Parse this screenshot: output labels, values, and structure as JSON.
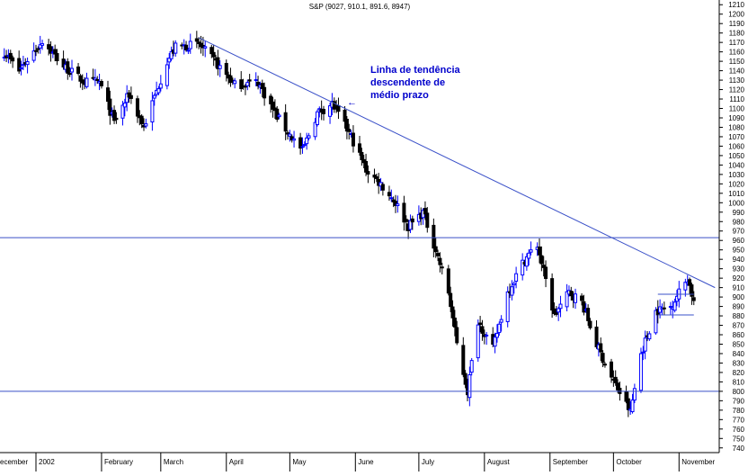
{
  "chart_data": {
    "type": "candlestick",
    "title": "S&P (9027, 910.1, 891.6, 8947)",
    "ylim": [
      735,
      1215
    ],
    "y_ticks": [
      740,
      750,
      760,
      770,
      780,
      790,
      800,
      810,
      820,
      830,
      840,
      850,
      860,
      870,
      880,
      890,
      900,
      910,
      920,
      930,
      940,
      950,
      960,
      970,
      980,
      990,
      1000,
      1010,
      1020,
      1030,
      1040,
      1050,
      1060,
      1070,
      1080,
      1090,
      1100,
      1110,
      1120,
      1130,
      1140,
      1150,
      1160,
      1170,
      1180,
      1190,
      1200,
      1210
    ],
    "x_range": [
      "2001-12-15",
      "2002-11-20"
    ],
    "month_labels": [
      {
        "label": "ecember",
        "date": "2001-12-15"
      },
      {
        "label": "2002",
        "date": "2002-01-01"
      },
      {
        "label": "February",
        "date": "2002-02-01"
      },
      {
        "label": "March",
        "date": "2002-03-01"
      },
      {
        "label": "April",
        "date": "2002-04-01"
      },
      {
        "label": "May",
        "date": "2002-05-01"
      },
      {
        "label": "June",
        "date": "2002-06-01"
      },
      {
        "label": "July",
        "date": "2002-07-01"
      },
      {
        "label": "August",
        "date": "2002-08-01"
      },
      {
        "label": "September",
        "date": "2002-09-01"
      },
      {
        "label": "October",
        "date": "2002-10-01"
      },
      {
        "label": "November",
        "date": "2002-11-01"
      }
    ],
    "anchors": [
      {
        "date": "2001-12-15",
        "value": 1165
      },
      {
        "date": "2001-12-24",
        "value": 1140
      },
      {
        "date": "2002-01-04",
        "value": 1172
      },
      {
        "date": "2002-01-14",
        "value": 1145
      },
      {
        "date": "2002-01-24",
        "value": 1128
      },
      {
        "date": "2002-01-31",
        "value": 1128
      },
      {
        "date": "2002-02-07",
        "value": 1085
      },
      {
        "date": "2002-02-14",
        "value": 1115
      },
      {
        "date": "2002-02-21",
        "value": 1080
      },
      {
        "date": "2002-03-04",
        "value": 1150
      },
      {
        "date": "2002-03-08",
        "value": 1165
      },
      {
        "date": "2002-03-19",
        "value": 1168
      },
      {
        "date": "2002-03-28",
        "value": 1146
      },
      {
        "date": "2002-04-05",
        "value": 1125
      },
      {
        "date": "2002-04-16",
        "value": 1128
      },
      {
        "date": "2002-04-24",
        "value": 1095
      },
      {
        "date": "2002-04-30",
        "value": 1075
      },
      {
        "date": "2002-05-07",
        "value": 1055
      },
      {
        "date": "2002-05-14",
        "value": 1095
      },
      {
        "date": "2002-05-21",
        "value": 1105
      },
      {
        "date": "2002-05-30",
        "value": 1070
      },
      {
        "date": "2002-06-06",
        "value": 1035
      },
      {
        "date": "2002-06-13",
        "value": 1020
      },
      {
        "date": "2002-06-20",
        "value": 1000
      },
      {
        "date": "2002-06-26",
        "value": 975
      },
      {
        "date": "2002-07-03",
        "value": 990
      },
      {
        "date": "2002-07-09",
        "value": 950
      },
      {
        "date": "2002-07-15",
        "value": 905
      },
      {
        "date": "2002-07-19",
        "value": 850
      },
      {
        "date": "2002-07-24",
        "value": 800
      },
      {
        "date": "2002-07-29",
        "value": 875
      },
      {
        "date": "2002-08-05",
        "value": 845
      },
      {
        "date": "2002-08-12",
        "value": 905
      },
      {
        "date": "2002-08-20",
        "value": 940
      },
      {
        "date": "2002-08-26",
        "value": 955
      },
      {
        "date": "2002-09-03",
        "value": 880
      },
      {
        "date": "2002-09-10",
        "value": 905
      },
      {
        "date": "2002-09-16",
        "value": 895
      },
      {
        "date": "2002-09-23",
        "value": 850
      },
      {
        "date": "2002-09-30",
        "value": 815
      },
      {
        "date": "2002-10-09",
        "value": 778
      },
      {
        "date": "2002-10-14",
        "value": 840
      },
      {
        "date": "2002-10-21",
        "value": 885
      },
      {
        "date": "2002-10-28",
        "value": 890
      },
      {
        "date": "2002-11-05",
        "value": 920
      },
      {
        "date": "2002-11-08",
        "value": 895
      }
    ],
    "trendline": {
      "start": {
        "date": "2002-03-19",
        "value": 1175
      },
      "end": {
        "date": "2002-11-18",
        "value": 910
      }
    },
    "horizontal_lines": [
      963,
      800
    ],
    "range_lines": [
      {
        "from": "2002-10-22",
        "to": "2002-11-08",
        "value": 903
      },
      {
        "from": "2002-10-22",
        "to": "2002-11-08",
        "value": 881
      }
    ],
    "annotation": {
      "lines": [
        "Linha de tendência",
        "descendente de",
        "médio prazo"
      ],
      "arrow": "←"
    },
    "grid": false
  },
  "colors": {
    "up": "#0000ff",
    "down": "#000000",
    "line": "#3a50c8",
    "annotation": "#0000cc"
  }
}
